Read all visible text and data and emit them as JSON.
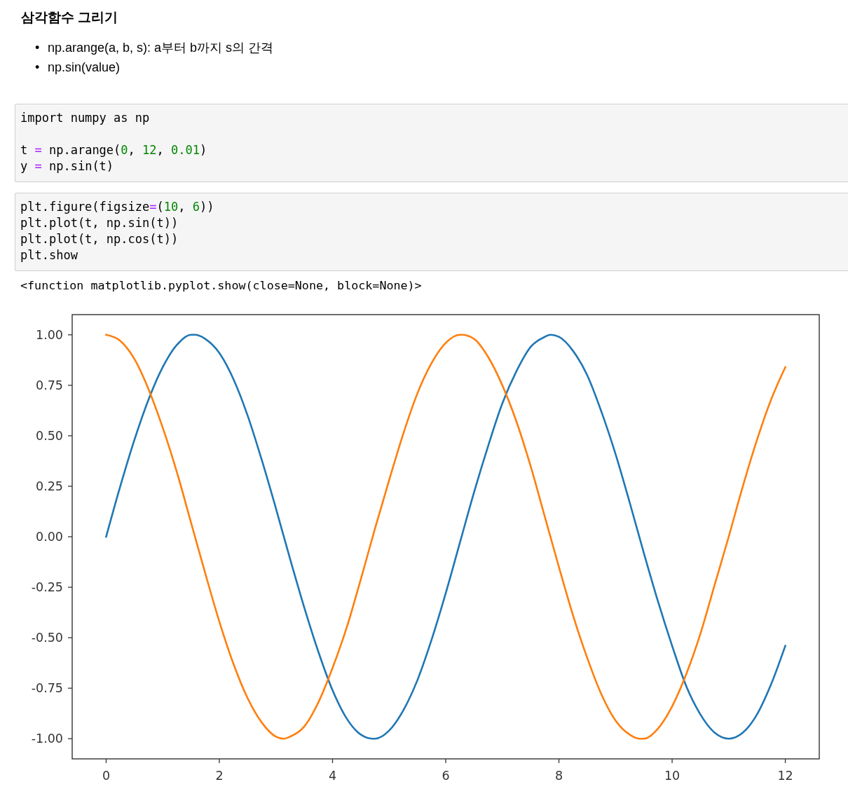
{
  "chart_data": {
    "type": "line",
    "title": "삼각함수 그리기",
    "annotations": [
      "• np.arange(a, b, s): a부터 b까지 s의 간격",
      "• np.sin(value)",
      "import numpy as np\n\nt = np.arange(0, 12, 0.01)\ny = np.sin(t)",
      "plt.figure(figsize=(10, 6))\nplt.plot(t, np.sin(t))\nplt.plot(t, np.cos(t))\nplt.show",
      "<function matplotlib.pyplot.show(close=None, block=None)>"
    ],
    "series": [
      {
        "color": "#1f77b4",
        "x": [
          0,
          0.25,
          0.5,
          0.75,
          1,
          1.25,
          1.5,
          1.57,
          1.75,
          2,
          2.25,
          2.5,
          2.75,
          3,
          3.25,
          3.5,
          3.75,
          4,
          4.25,
          4.5,
          4.71,
          4.75,
          5,
          5.25,
          5.5,
          5.75,
          6,
          6.25,
          6.5,
          6.75,
          7,
          7.25,
          7.5,
          7.75,
          7.85,
          8,
          8.25,
          8.5,
          8.75,
          9,
          9.25,
          9.5,
          9.75,
          10,
          10.25,
          10.5,
          10.75,
          11,
          11.25,
          11.5,
          11.75,
          12
        ],
        "values": [
          0,
          0.25,
          0.48,
          0.68,
          0.84,
          0.95,
          1.0,
          1.0,
          0.98,
          0.91,
          0.78,
          0.6,
          0.38,
          0.14,
          -0.11,
          -0.35,
          -0.57,
          -0.76,
          -0.9,
          -0.98,
          -1.0,
          -1.0,
          -0.96,
          -0.86,
          -0.71,
          -0.51,
          -0.28,
          -0.03,
          0.22,
          0.45,
          0.66,
          0.82,
          0.94,
          0.99,
          1.0,
          0.99,
          0.92,
          0.8,
          0.62,
          0.41,
          0.17,
          -0.08,
          -0.32,
          -0.54,
          -0.74,
          -0.88,
          -0.97,
          -1.0,
          -0.97,
          -0.88,
          -0.73,
          -0.54
        ]
      },
      {
        "color": "#ff7f0e",
        "x": [
          0,
          0.25,
          0.5,
          0.75,
          1,
          1.25,
          1.5,
          1.75,
          2,
          2.25,
          2.5,
          2.75,
          3,
          3.14,
          3.25,
          3.5,
          3.75,
          4,
          4.25,
          4.5,
          4.75,
          5,
          5.25,
          5.5,
          5.75,
          6,
          6.25,
          6.28,
          6.5,
          6.75,
          7,
          7.25,
          7.5,
          7.75,
          8,
          8.25,
          8.5,
          8.75,
          9,
          9.25,
          9.42,
          9.5,
          9.75,
          10,
          10.25,
          10.5,
          10.75,
          11,
          11.25,
          11.5,
          11.75,
          12
        ],
        "values": [
          1.0,
          0.97,
          0.88,
          0.73,
          0.54,
          0.32,
          0.07,
          -0.18,
          -0.42,
          -0.63,
          -0.8,
          -0.92,
          -0.99,
          -1.0,
          -0.99,
          -0.94,
          -0.82,
          -0.65,
          -0.45,
          -0.21,
          0.04,
          0.28,
          0.51,
          0.71,
          0.86,
          0.96,
          1.0,
          1.0,
          0.98,
          0.89,
          0.75,
          0.57,
          0.35,
          0.1,
          -0.15,
          -0.39,
          -0.6,
          -0.78,
          -0.91,
          -0.98,
          -1.0,
          -1.0,
          -0.95,
          -0.84,
          -0.68,
          -0.48,
          -0.24,
          0.0,
          0.25,
          0.48,
          0.68,
          0.84
        ]
      }
    ],
    "xlim": [
      -0.6,
      12.6
    ],
    "ylim": [
      -1.1,
      1.1
    ],
    "xticks": [
      0,
      2,
      4,
      6,
      8,
      10,
      12
    ],
    "yticks": [
      {
        "value": -1,
        "label": "-1.00"
      },
      {
        "value": -0.75,
        "label": "-0.75"
      },
      {
        "value": -0.5,
        "label": "-0.50"
      },
      {
        "value": -0.25,
        "label": "-0.25"
      },
      {
        "value": 0,
        "label": "0.00"
      },
      {
        "value": 0.25,
        "label": "0.25"
      },
      {
        "value": 0.5,
        "label": "0.50"
      },
      {
        "value": 0.75,
        "label": "0.75"
      },
      {
        "value": 1,
        "label": "1.00"
      }
    ]
  }
}
